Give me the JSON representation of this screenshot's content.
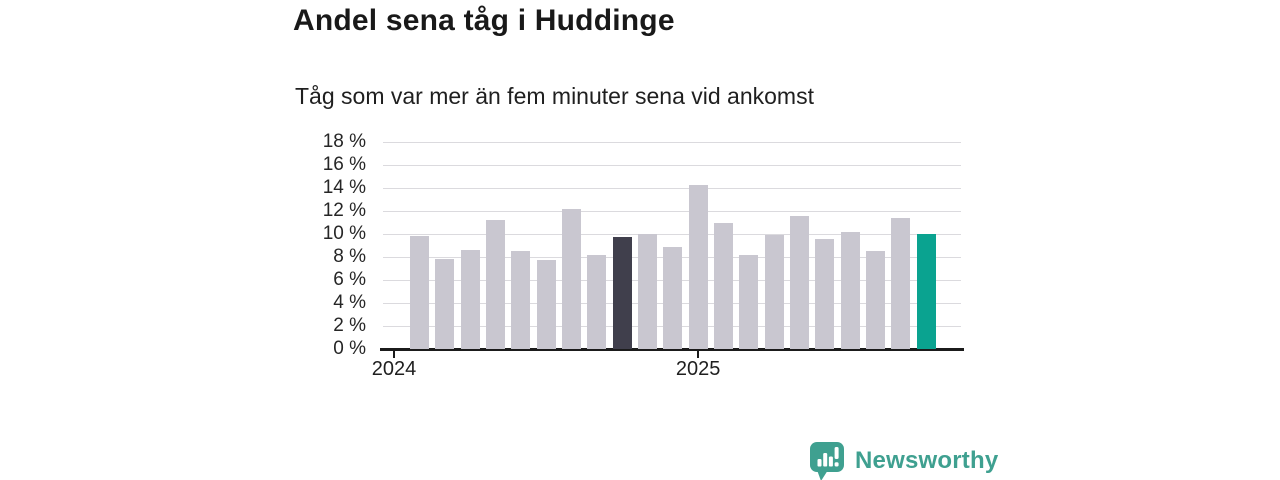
{
  "title": "Andel sena tåg i Huddinge",
  "subtitle": "Tåg som var mer än fem minuter sena vid ankomst",
  "chart_data": {
    "type": "bar",
    "title": "Andel sena tåg i Huddinge",
    "subtitle": "Tåg som var mer än fem minuter sena vid ankomst",
    "unit": "%",
    "categories": [
      "2024-01",
      "2024-02",
      "2024-03",
      "2024-04",
      "2024-05",
      "2024-06",
      "2024-07",
      "2024-08",
      "2024-09",
      "2024-10",
      "2024-11",
      "2024-12",
      "2025-01",
      "2025-02",
      "2025-03",
      "2025-04",
      "2025-05",
      "2025-06",
      "2025-07",
      "2025-08",
      "2025-09"
    ],
    "values": [
      9.8,
      7.8,
      8.6,
      11.2,
      8.5,
      7.7,
      12.2,
      8.2,
      9.7,
      10.0,
      8.9,
      14.3,
      11.0,
      8.2,
      9.9,
      11.6,
      9.6,
      10.2,
      8.5,
      11.4,
      10.0
    ],
    "ylim": [
      0,
      18
    ],
    "y_ticks": [
      "18 %",
      "16 %",
      "14 %",
      "12 %",
      "10 %",
      "8 %",
      "6 %",
      "4 %",
      "2 %",
      "0 %"
    ],
    "x_ticks": [
      {
        "label": "2024",
        "month_index": -1
      },
      {
        "label": "2025",
        "month_index": 11
      }
    ],
    "grid": true,
    "legend": "none",
    "highlights": {
      "dark_index": 8,
      "teal_index": 20
    },
    "colors": {
      "default": "#c9c7d0",
      "dark": "#403f4c",
      "teal": "#0aa390",
      "gridline": "#dbdade",
      "axis": "#1b1b1b"
    }
  },
  "branding": {
    "logo_text": "Newsworthy",
    "logo_color": "#3fa090"
  }
}
